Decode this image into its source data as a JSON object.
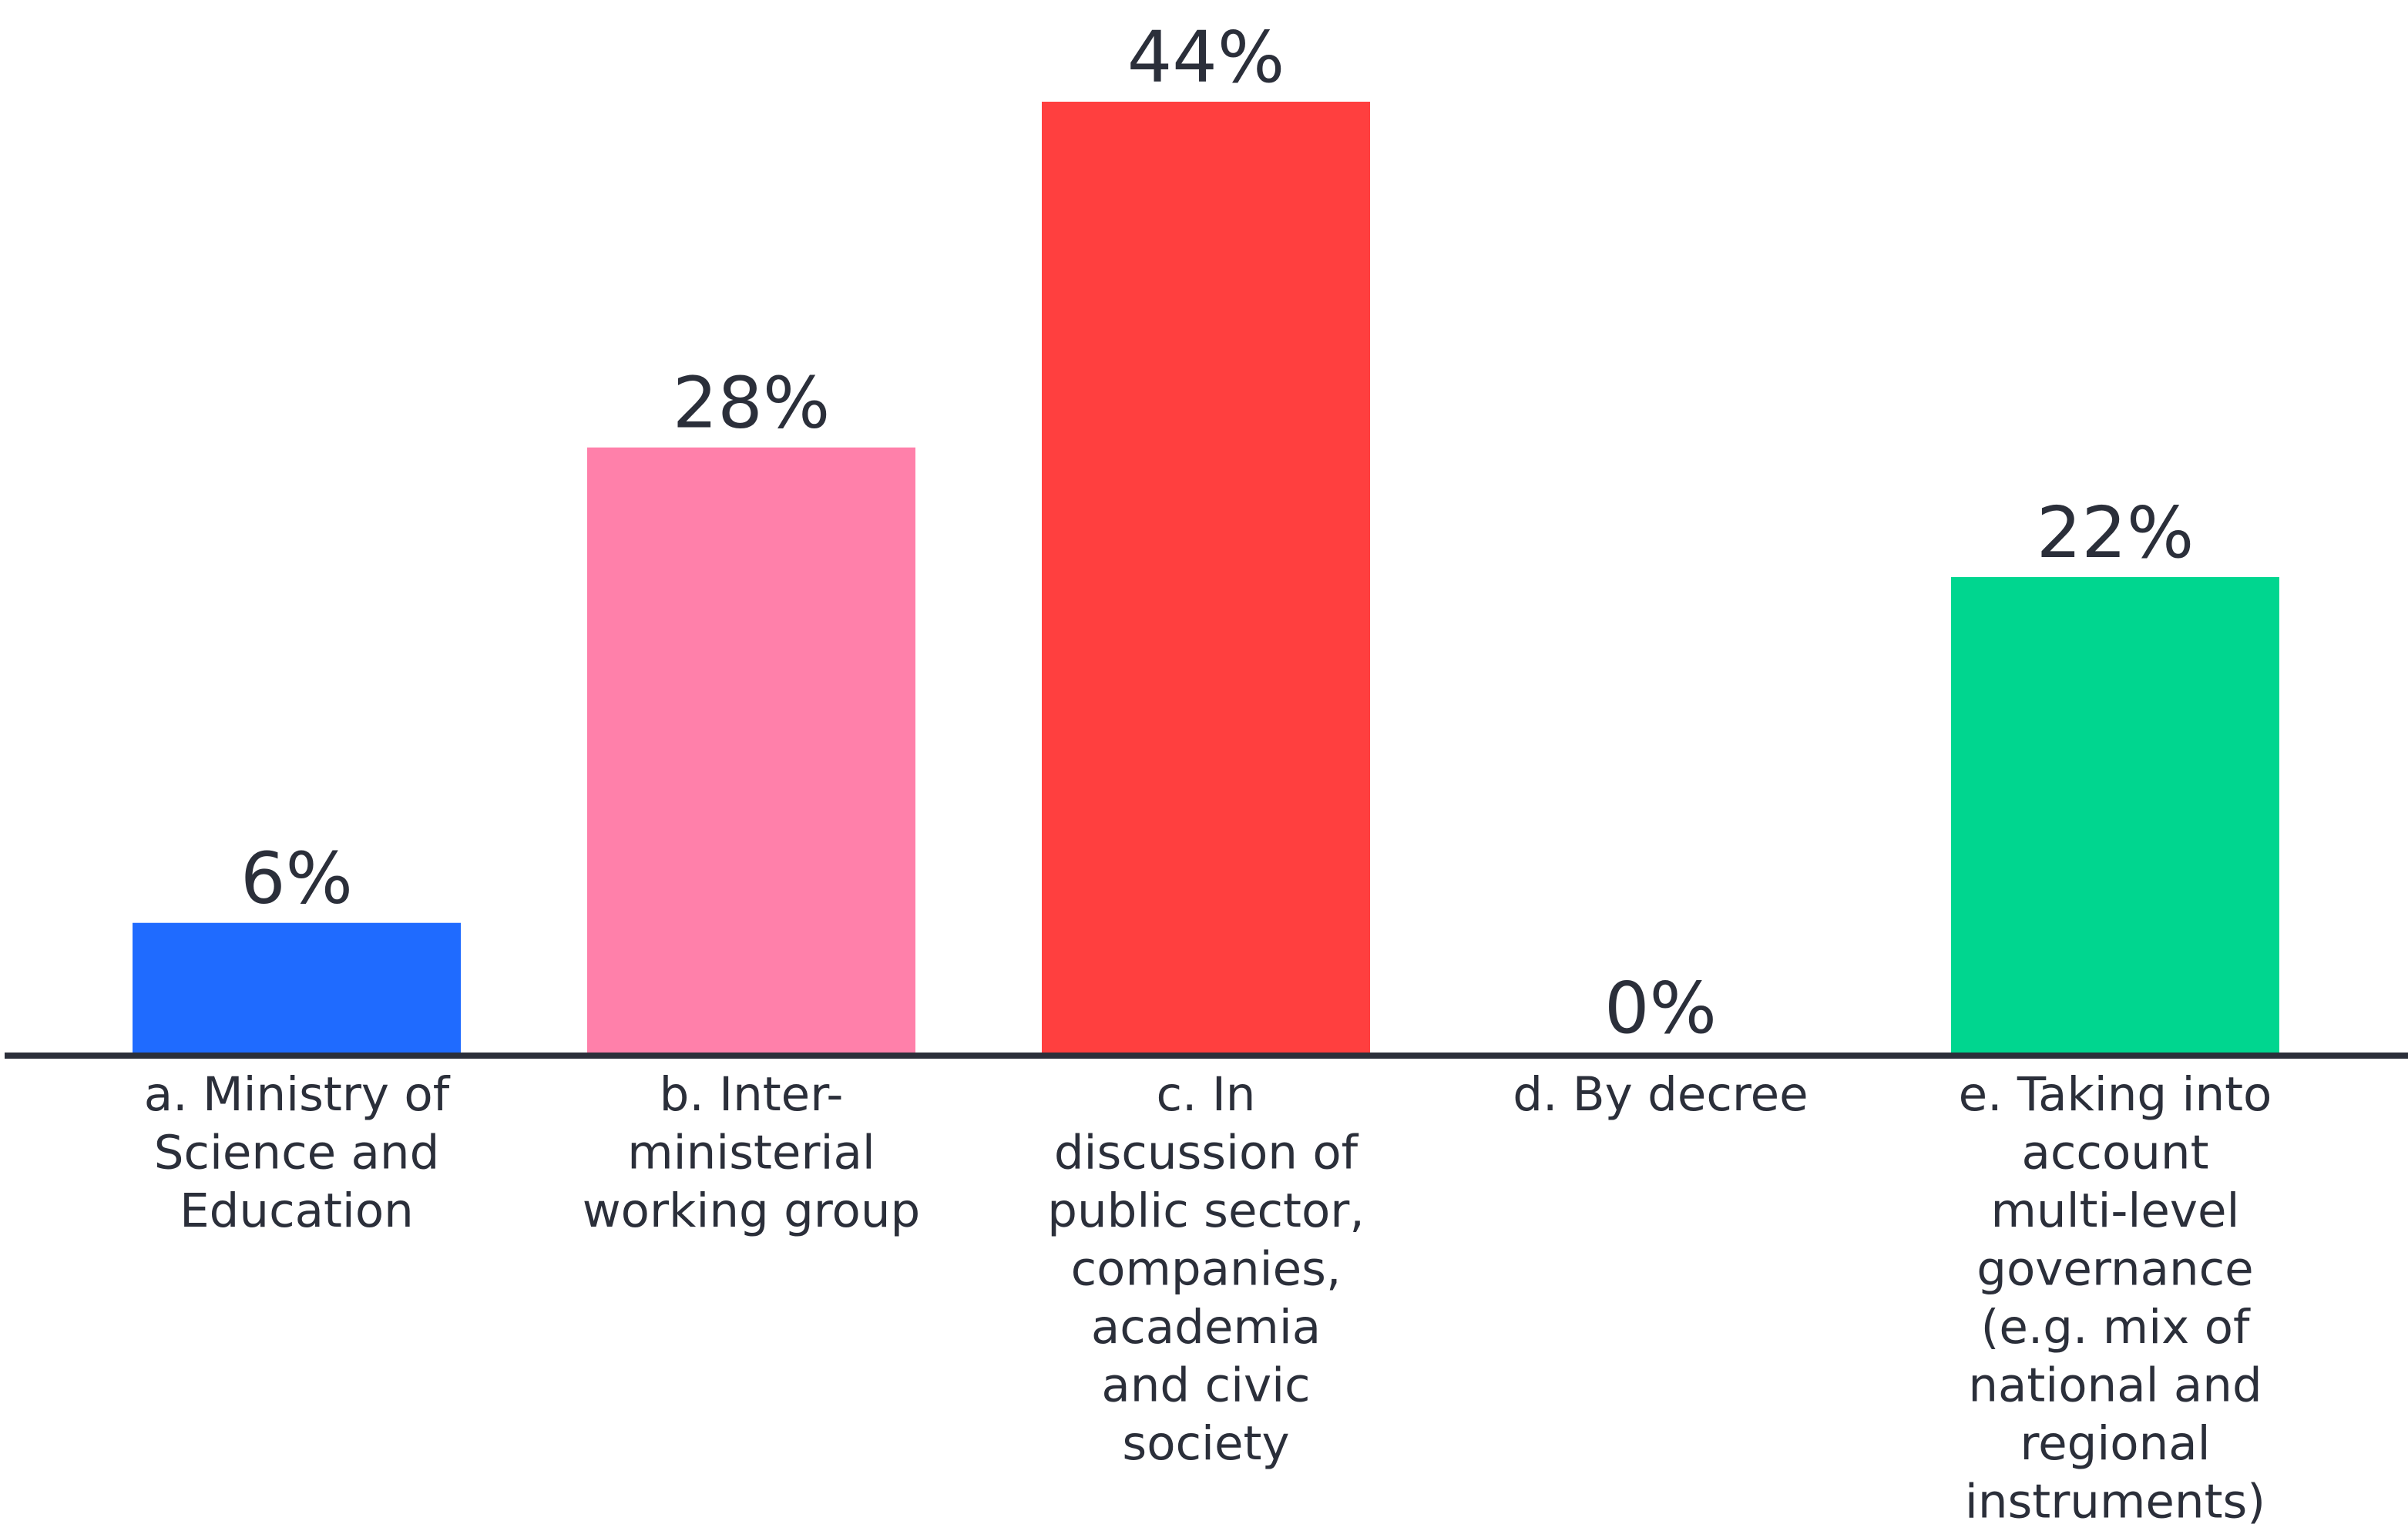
{
  "chart_data": {
    "type": "bar",
    "categories": [
      "a. Ministry of Science and Education",
      "b. Inter-ministerial working group",
      "c. In discussion of public sector, companies, academia and civic society",
      "d. By decree",
      "e. Taking into account multi-level governance (e.g. mix of national and regional instruments)"
    ],
    "category_lines": [
      [
        "a. Ministry of",
        "Science and",
        "Education"
      ],
      [
        "b. Inter-",
        "ministerial",
        "working group"
      ],
      [
        "c. In",
        "discussion of",
        "public sector,",
        "companies,",
        "academia",
        "and civic",
        "society"
      ],
      [
        "d. By decree"
      ],
      [
        "e. Taking into",
        "account",
        "multi-level",
        "governance",
        "(e.g. mix of",
        "national and",
        "regional",
        "instruments)"
      ]
    ],
    "values": [
      6,
      28,
      44,
      0,
      22
    ],
    "value_labels": [
      "6%",
      "28%",
      "44%",
      "0%",
      "22%"
    ],
    "colors": [
      "#1f6bff",
      "#ff80aa",
      "#ff3f3f",
      "#ffffff",
      "#00d68f"
    ],
    "ylim": [
      0,
      44
    ],
    "grid": false,
    "legend": "none",
    "title": "",
    "xlabel": "",
    "ylabel": ""
  }
}
